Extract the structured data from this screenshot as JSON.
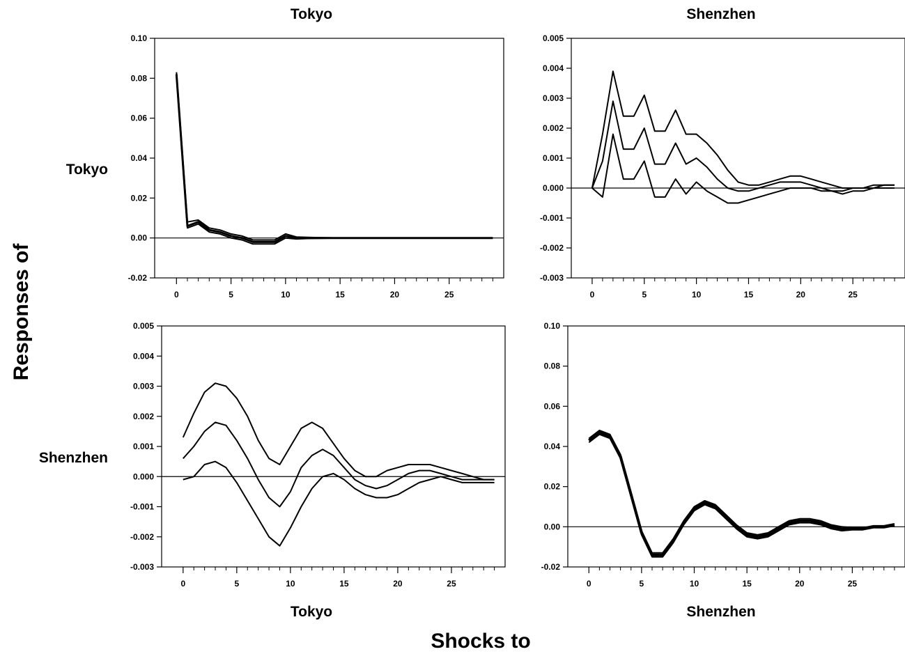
{
  "figure": {
    "y_title": "Responses of",
    "x_title": "Shocks to",
    "column_titles": [
      "Tokyo",
      "Shenzhen"
    ],
    "column_footers": [
      "Tokyo",
      "Shenzhen"
    ],
    "row_labels": [
      "Tokyo",
      "Shenzhen"
    ]
  },
  "chart_data": [
    {
      "type": "line",
      "title": "Tokyo",
      "response": "Tokyo",
      "shock": "Tokyo",
      "xlim": [
        -2,
        30
      ],
      "ylim": [
        -0.02,
        0.1
      ],
      "xticks": [
        "0",
        "5",
        "10",
        "15",
        "20",
        "25"
      ],
      "yticks": [
        "-0.02",
        "0.00",
        "0.02",
        "0.04",
        "0.06",
        "0.08",
        "0.10"
      ],
      "zero_line": true,
      "x": [
        0,
        1,
        2,
        3,
        4,
        5,
        6,
        7,
        8,
        9,
        10,
        11,
        12,
        13,
        14,
        15,
        16,
        17,
        18,
        19,
        20,
        21,
        22,
        23,
        24,
        25,
        26,
        27,
        28,
        29
      ],
      "series": [
        {
          "values": [
            0.082,
            0.006,
            0.008,
            0.004,
            0.003,
            0.001,
            0.0,
            -0.002,
            -0.002,
            -0.002,
            0.001,
            0.0,
            0.0,
            0.0,
            0.0,
            0.0,
            0.0,
            0.0,
            0.0,
            0.0,
            0.0,
            0.0,
            0.0,
            0.0,
            0.0,
            0.0,
            0.0,
            0.0,
            0.0,
            0.0
          ],
          "width": 3
        },
        {
          "values": [
            0.083,
            0.008,
            0.009,
            0.005,
            0.004,
            0.002,
            0.001,
            -0.001,
            -0.001,
            -0.001,
            0.002,
            0.0005,
            0.0003,
            0.0002,
            0.0001,
            0.0,
            0.0,
            0.0,
            0.0,
            0.0,
            0.0,
            0.0,
            0.0,
            0.0,
            0.0,
            0.0,
            0.0,
            0.0,
            0.0,
            0.0
          ],
          "width": 2
        },
        {
          "values": [
            0.081,
            0.005,
            0.007,
            0.003,
            0.002,
            0.0,
            -0.001,
            -0.003,
            -0.003,
            -0.003,
            0.0,
            -0.0005,
            -0.0003,
            -0.0002,
            -0.0001,
            0.0,
            0.0,
            0.0,
            0.0,
            0.0,
            0.0,
            0.0,
            0.0,
            0.0,
            0.0,
            0.0,
            0.0,
            0.0,
            0.0,
            0.0
          ],
          "width": 2
        }
      ]
    },
    {
      "type": "line",
      "title": "Shenzhen",
      "response": "Tokyo",
      "shock": "Shenzhen",
      "xlim": [
        -2,
        30
      ],
      "ylim": [
        -0.003,
        0.005
      ],
      "xticks": [
        "0",
        "5",
        "10",
        "15",
        "20",
        "25"
      ],
      "yticks": [
        "-0.003",
        "-0.002",
        "-0.001",
        "0.000",
        "0.001",
        "0.002",
        "0.003",
        "0.004",
        "0.005"
      ],
      "zero_line": true,
      "x": [
        0,
        1,
        2,
        3,
        4,
        5,
        6,
        7,
        8,
        9,
        10,
        11,
        12,
        13,
        14,
        15,
        16,
        17,
        18,
        19,
        20,
        21,
        22,
        23,
        24,
        25,
        26,
        27,
        28,
        29
      ],
      "series": [
        {
          "values": [
            0.0,
            0.0018,
            0.0039,
            0.0024,
            0.0024,
            0.0031,
            0.0019,
            0.0019,
            0.0026,
            0.0018,
            0.0018,
            0.0015,
            0.0011,
            0.0006,
            0.0002,
            0.0001,
            0.0001,
            0.0002,
            0.0003,
            0.0004,
            0.0004,
            0.0003,
            0.0002,
            0.0001,
            0.0,
            0.0,
            0.0,
            0.0001,
            0.0001,
            0.0001
          ],
          "width": 2
        },
        {
          "values": [
            0.0,
            0.0009,
            0.0029,
            0.0013,
            0.0013,
            0.002,
            0.0008,
            0.0008,
            0.0015,
            0.0008,
            0.001,
            0.0007,
            0.0003,
            0.0,
            -0.0001,
            -0.0001,
            0.0,
            0.0001,
            0.0002,
            0.0002,
            0.0002,
            0.0001,
            0.0,
            -0.0001,
            -0.0001,
            0.0,
            0.0,
            0.0,
            0.0001,
            0.0001
          ],
          "width": 2
        },
        {
          "values": [
            0.0,
            -0.0003,
            0.0018,
            0.0003,
            0.0003,
            0.0009,
            -0.0003,
            -0.0003,
            0.0003,
            -0.0002,
            0.0002,
            -0.0001,
            -0.0003,
            -0.0005,
            -0.0005,
            -0.0004,
            -0.0003,
            -0.0002,
            -0.0001,
            0.0,
            0.0,
            0.0,
            -0.0001,
            -0.0001,
            -0.0002,
            -0.0001,
            -0.0001,
            0.0,
            0.0,
            0.0
          ],
          "width": 2
        }
      ]
    },
    {
      "type": "line",
      "title": "Tokyo",
      "response": "Shenzhen",
      "shock": "Tokyo",
      "xlim": [
        -2,
        30
      ],
      "ylim": [
        -0.003,
        0.005
      ],
      "xticks": [
        "0",
        "5",
        "10",
        "15",
        "20",
        "25"
      ],
      "yticks": [
        "-0.003",
        "-0.002",
        "-0.001",
        "0.000",
        "0.001",
        "0.002",
        "0.003",
        "0.004",
        "0.005"
      ],
      "zero_line": true,
      "x": [
        0,
        1,
        2,
        3,
        4,
        5,
        6,
        7,
        8,
        9,
        10,
        11,
        12,
        13,
        14,
        15,
        16,
        17,
        18,
        19,
        20,
        21,
        22,
        23,
        24,
        25,
        26,
        27,
        28,
        29
      ],
      "series": [
        {
          "values": [
            0.0013,
            0.0021,
            0.0028,
            0.0031,
            0.003,
            0.0026,
            0.002,
            0.0012,
            0.0006,
            0.0004,
            0.001,
            0.0016,
            0.0018,
            0.0016,
            0.0011,
            0.0006,
            0.0002,
            0.0,
            0.0,
            0.0002,
            0.0003,
            0.0004,
            0.0004,
            0.0004,
            0.0003,
            0.0002,
            0.0001,
            0.0,
            -0.0001,
            -0.0001
          ],
          "width": 2
        },
        {
          "values": [
            0.0006,
            0.001,
            0.0015,
            0.0018,
            0.0017,
            0.0012,
            0.0006,
            -0.0001,
            -0.0007,
            -0.001,
            -0.0005,
            0.0003,
            0.0007,
            0.0009,
            0.0007,
            0.0003,
            -0.0001,
            -0.0003,
            -0.0004,
            -0.0003,
            -0.0001,
            0.0001,
            0.0002,
            0.0002,
            0.0001,
            0.0,
            -0.0001,
            -0.0001,
            -0.0001,
            -0.0001
          ],
          "width": 2
        },
        {
          "values": [
            -0.0001,
            0.0,
            0.0004,
            0.0005,
            0.0003,
            -0.0002,
            -0.0008,
            -0.0014,
            -0.002,
            -0.0023,
            -0.0017,
            -0.001,
            -0.0004,
            0.0,
            0.0001,
            -0.0001,
            -0.0004,
            -0.0006,
            -0.0007,
            -0.0007,
            -0.0006,
            -0.0004,
            -0.0002,
            -0.0001,
            0.0,
            -0.0001,
            -0.0002,
            -0.0002,
            -0.0002,
            -0.0002
          ],
          "width": 2
        }
      ]
    },
    {
      "type": "line",
      "title": "Shenzhen",
      "response": "Shenzhen",
      "shock": "Shenzhen",
      "xlim": [
        -2,
        30
      ],
      "ylim": [
        -0.02,
        0.1
      ],
      "xticks": [
        "0",
        "5",
        "10",
        "15",
        "20",
        "25"
      ],
      "yticks": [
        "-0.02",
        "0.00",
        "0.02",
        "0.04",
        "0.06",
        "0.08",
        "0.10"
      ],
      "zero_line": true,
      "x": [
        0,
        1,
        2,
        3,
        4,
        5,
        6,
        7,
        8,
        9,
        10,
        11,
        12,
        13,
        14,
        15,
        16,
        17,
        18,
        19,
        20,
        21,
        22,
        23,
        24,
        25,
        26,
        27,
        28,
        29
      ],
      "series": [
        {
          "values": [
            0.043,
            0.047,
            0.045,
            0.035,
            0.016,
            -0.003,
            -0.014,
            -0.014,
            -0.007,
            0.002,
            0.009,
            0.012,
            0.01,
            0.005,
            0.0,
            -0.004,
            -0.005,
            -0.004,
            -0.001,
            0.002,
            0.003,
            0.003,
            0.002,
            0.0,
            -0.001,
            -0.001,
            -0.001,
            0.0,
            0.0,
            0.001
          ],
          "width": 4
        },
        {
          "values": [
            0.044,
            0.048,
            0.046,
            0.036,
            0.017,
            -0.002,
            -0.013,
            -0.013,
            -0.006,
            0.003,
            0.01,
            0.013,
            0.011,
            0.006,
            0.001,
            -0.003,
            -0.004,
            -0.003,
            0.0,
            0.003,
            0.004,
            0.004,
            0.003,
            0.001,
            0.0,
            -0.0005,
            -0.0005,
            0.0005,
            0.0005,
            0.0015
          ],
          "width": 2
        },
        {
          "values": [
            0.042,
            0.046,
            0.044,
            0.034,
            0.015,
            -0.004,
            -0.015,
            -0.015,
            -0.008,
            0.001,
            0.008,
            0.011,
            0.009,
            0.004,
            -0.001,
            -0.005,
            -0.006,
            -0.005,
            -0.002,
            0.001,
            0.002,
            0.002,
            0.001,
            -0.001,
            -0.002,
            -0.0015,
            -0.0015,
            -0.0005,
            -0.0005,
            0.0005
          ],
          "width": 2
        }
      ]
    }
  ]
}
